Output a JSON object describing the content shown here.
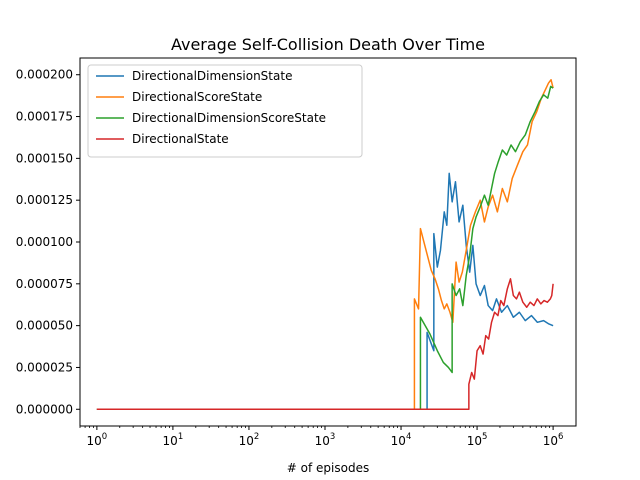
{
  "chart_data": {
    "type": "line",
    "title": "Average Self-Collision Death Over Time",
    "xlabel": "# of episodes",
    "ylabel": "",
    "xscale": "log",
    "xlim": [
      0.6,
      2000000
    ],
    "ylim": [
      -1e-05,
      0.00021
    ],
    "x_ticks": [
      {
        "base": "10",
        "exp": "0",
        "value": 1
      },
      {
        "base": "10",
        "exp": "1",
        "value": 10
      },
      {
        "base": "10",
        "exp": "2",
        "value": 100
      },
      {
        "base": "10",
        "exp": "3",
        "value": 1000
      },
      {
        "base": "10",
        "exp": "4",
        "value": 10000
      },
      {
        "base": "10",
        "exp": "5",
        "value": 100000
      },
      {
        "base": "10",
        "exp": "6",
        "value": 1000000
      }
    ],
    "y_ticks": [
      {
        "label": "0.000000",
        "value": 0
      },
      {
        "label": "0.000025",
        "value": 2.5e-05
      },
      {
        "label": "0.000050",
        "value": 5e-05
      },
      {
        "label": "0.000075",
        "value": 7.5e-05
      },
      {
        "label": "0.000100",
        "value": 0.0001
      },
      {
        "label": "0.000125",
        "value": 0.000125
      },
      {
        "label": "0.000150",
        "value": 0.00015
      },
      {
        "label": "0.000175",
        "value": 0.000175
      },
      {
        "label": "0.000200",
        "value": 0.0002
      }
    ],
    "grid": false,
    "legend_position": "upper-left",
    "series": [
      {
        "name": "DirectionalDimensionState",
        "color": "#1f77b4",
        "points": [
          [
            1,
            0
          ],
          [
            22000,
            0
          ],
          [
            22000,
            4.6e-05
          ],
          [
            27000,
            3.5e-05
          ],
          [
            27000,
            0.000105
          ],
          [
            30000,
            8.5e-05
          ],
          [
            33000,
            9.5e-05
          ],
          [
            37000,
            0.000118
          ],
          [
            40000,
            0.00011
          ],
          [
            43000,
            0.000141
          ],
          [
            47000,
            0.000124
          ],
          [
            52000,
            0.000136
          ],
          [
            58000,
            0.000112
          ],
          [
            65000,
            0.000122
          ],
          [
            72000,
            9.8e-05
          ],
          [
            80000,
            8.2e-05
          ],
          [
            88000,
            9.8e-05
          ],
          [
            97000,
            7.5e-05
          ],
          [
            110000,
            6.8e-05
          ],
          [
            125000,
            7.4e-05
          ],
          [
            140000,
            6.2e-05
          ],
          [
            160000,
            5.9e-05
          ],
          [
            180000,
            6.6e-05
          ],
          [
            210000,
            5.8e-05
          ],
          [
            250000,
            6.2e-05
          ],
          [
            300000,
            5.5e-05
          ],
          [
            360000,
            5.8e-05
          ],
          [
            430000,
            5.3e-05
          ],
          [
            520000,
            5.6e-05
          ],
          [
            620000,
            5.2e-05
          ],
          [
            750000,
            5.3e-05
          ],
          [
            880000,
            5.1e-05
          ],
          [
            1000000,
            5e-05
          ]
        ]
      },
      {
        "name": "DirectionalScoreState",
        "color": "#ff7f0e",
        "points": [
          [
            1,
            0
          ],
          [
            15000,
            0
          ],
          [
            15000,
            6.6e-05
          ],
          [
            17000,
            6e-05
          ],
          [
            18000,
            0.000108
          ],
          [
            25000,
            8.3e-05
          ],
          [
            28000,
            7.8e-05
          ],
          [
            31000,
            7.2e-05
          ],
          [
            34000,
            6.5e-05
          ],
          [
            37000,
            6e-05
          ],
          [
            40000,
            6.3e-05
          ],
          [
            44000,
            5.8e-05
          ],
          [
            48000,
            5.2e-05
          ],
          [
            53000,
            8.8e-05
          ],
          [
            58000,
            7.6e-05
          ],
          [
            64000,
            8.2e-05
          ],
          [
            72000,
            9.5e-05
          ],
          [
            82000,
            0.00011
          ],
          [
            95000,
            0.000118
          ],
          [
            110000,
            0.000125
          ],
          [
            125000,
            0.000112
          ],
          [
            140000,
            0.000121
          ],
          [
            160000,
            0.000128
          ],
          [
            185000,
            0.000118
          ],
          [
            215000,
            0.000132
          ],
          [
            250000,
            0.000124
          ],
          [
            290000,
            0.000138
          ],
          [
            340000,
            0.000146
          ],
          [
            400000,
            0.000154
          ],
          [
            460000,
            0.000158
          ],
          [
            530000,
            0.000172
          ],
          [
            610000,
            0.000178
          ],
          [
            700000,
            0.000186
          ],
          [
            790000,
            0.000191
          ],
          [
            870000,
            0.000195
          ],
          [
            940000,
            0.000197
          ],
          [
            1000000,
            0.000192
          ]
        ]
      },
      {
        "name": "DirectionalDimensionScoreState",
        "color": "#2ca02c",
        "points": [
          [
            1,
            0
          ],
          [
            18000,
            0
          ],
          [
            18000,
            5.5e-05
          ],
          [
            24000,
            4.5e-05
          ],
          [
            30000,
            3.5e-05
          ],
          [
            36000,
            2.8e-05
          ],
          [
            42000,
            2.5e-05
          ],
          [
            47000,
            2.2e-05
          ],
          [
            47000,
            7.5e-05
          ],
          [
            53000,
            6.8e-05
          ],
          [
            59000,
            7.2e-05
          ],
          [
            65000,
            6.2e-05
          ],
          [
            72000,
            8e-05
          ],
          [
            80000,
            9.2e-05
          ],
          [
            88000,
            0.000108
          ],
          [
            97000,
            0.000115
          ],
          [
            110000,
            0.000121
          ],
          [
            125000,
            0.000128
          ],
          [
            140000,
            0.000122
          ],
          [
            155000,
            0.000132
          ],
          [
            170000,
            0.000141
          ],
          [
            190000,
            0.000148
          ],
          [
            215000,
            0.000155
          ],
          [
            245000,
            0.000152
          ],
          [
            280000,
            0.000158
          ],
          [
            320000,
            0.000154
          ],
          [
            370000,
            0.00016
          ],
          [
            430000,
            0.000164
          ],
          [
            500000,
            0.000172
          ],
          [
            580000,
            0.000178
          ],
          [
            660000,
            0.000184
          ],
          [
            750000,
            0.000188
          ],
          [
            850000,
            0.000186
          ],
          [
            930000,
            0.000193
          ],
          [
            1000000,
            0.000192
          ]
        ]
      },
      {
        "name": "DirectionalState",
        "color": "#d62728",
        "points": [
          [
            1,
            0
          ],
          [
            78000,
            0
          ],
          [
            78000,
            1.5e-05
          ],
          [
            85000,
            2.2e-05
          ],
          [
            92000,
            1.8e-05
          ],
          [
            100000,
            3.5e-05
          ],
          [
            110000,
            3.8e-05
          ],
          [
            120000,
            3.3e-05
          ],
          [
            130000,
            4.4e-05
          ],
          [
            142000,
            4.2e-05
          ],
          [
            155000,
            5.2e-05
          ],
          [
            170000,
            5.8e-05
          ],
          [
            188000,
            5.6e-05
          ],
          [
            205000,
            6.5e-05
          ],
          [
            225000,
            6.2e-05
          ],
          [
            250000,
            7.2e-05
          ],
          [
            275000,
            7.8e-05
          ],
          [
            300000,
            6.8e-05
          ],
          [
            330000,
            6.6e-05
          ],
          [
            360000,
            7e-05
          ],
          [
            400000,
            6.4e-05
          ],
          [
            450000,
            6.1e-05
          ],
          [
            500000,
            6.4e-05
          ],
          [
            560000,
            6.2e-05
          ],
          [
            620000,
            6.6e-05
          ],
          [
            690000,
            6.3e-05
          ],
          [
            760000,
            6.5e-05
          ],
          [
            840000,
            6.4e-05
          ],
          [
            920000,
            6.6e-05
          ],
          [
            960000,
            6.8e-05
          ],
          [
            1000000,
            7.5e-05
          ]
        ]
      }
    ]
  }
}
